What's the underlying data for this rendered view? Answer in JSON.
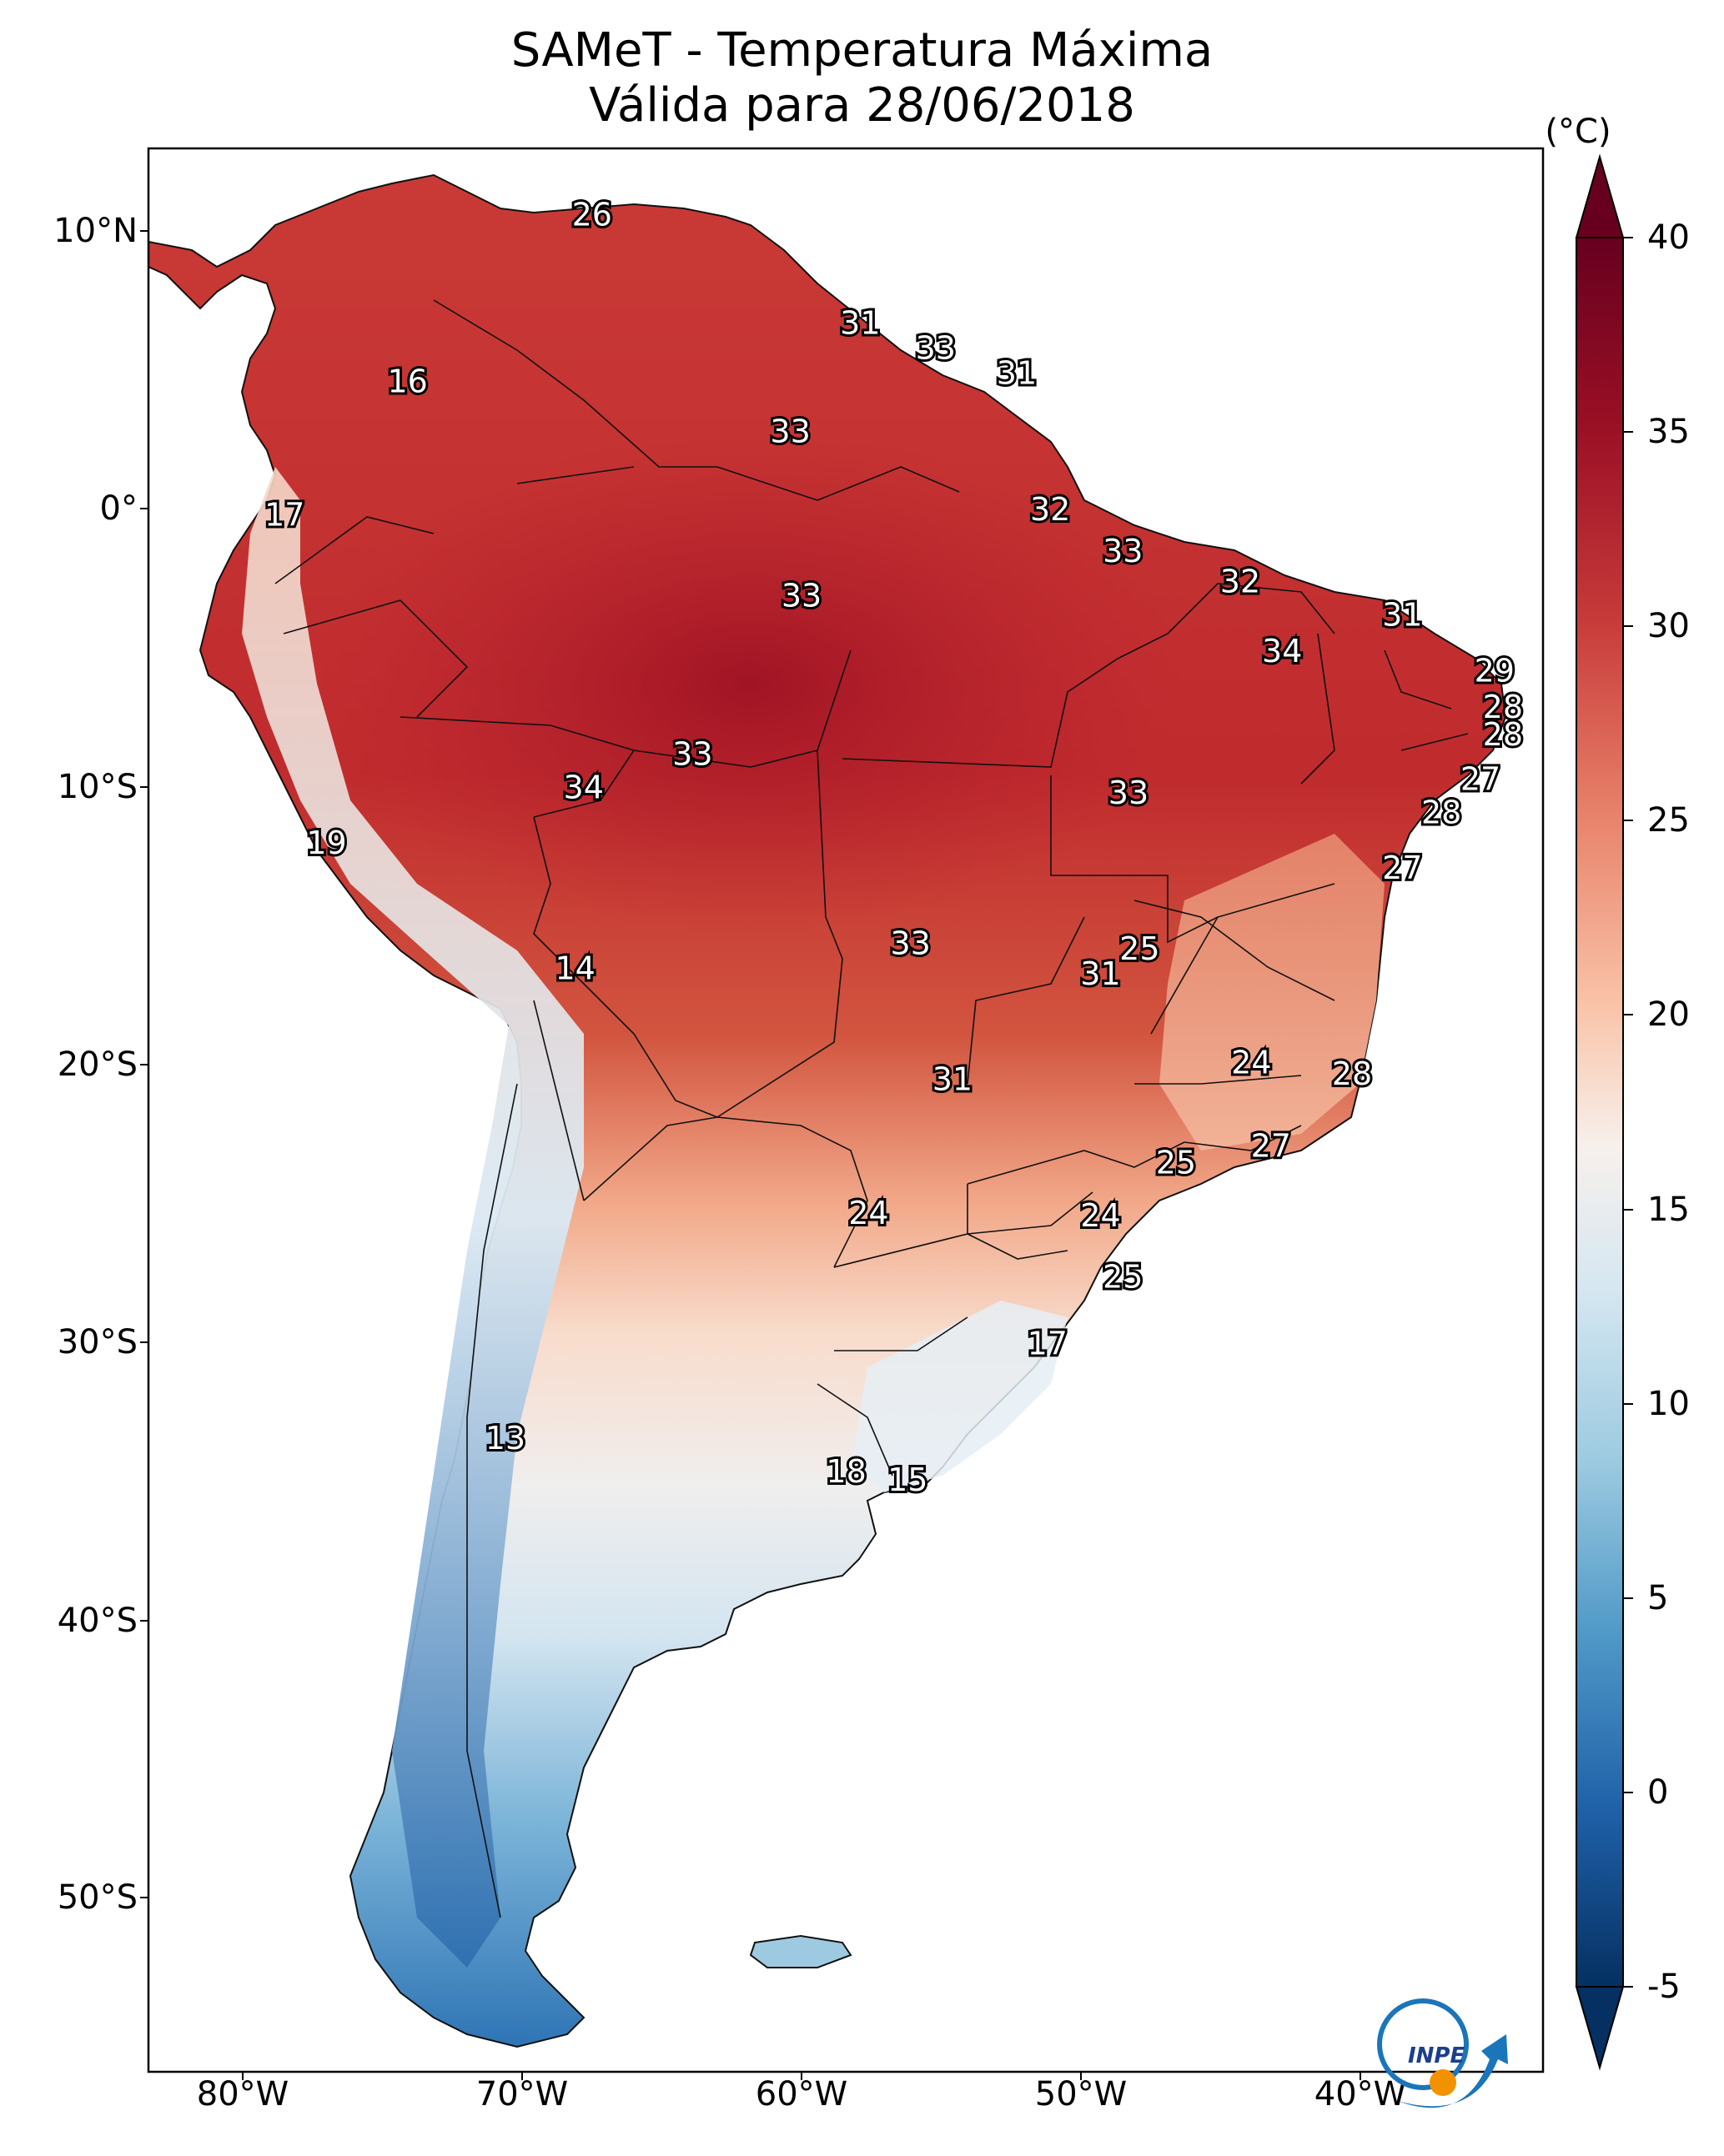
{
  "title": "SAMeT - Temperatura Máxima",
  "subtitle": "Válida para 28/06/2018",
  "colorbar": {
    "unit": "(°C)",
    "ticks": [
      "40",
      "35",
      "30",
      "25",
      "20",
      "15",
      "10",
      "5",
      "0",
      "-5"
    ],
    "min": -5,
    "max": 40,
    "colors_high_to_low": [
      "#67001f",
      "#b2182b",
      "#d6604d",
      "#f4a582",
      "#fddbc7",
      "#f7f7f7",
      "#d1e5f0",
      "#92c5de",
      "#4393c3",
      "#2166ac",
      "#053061"
    ]
  },
  "axes": {
    "lat_labels": [
      "10°N",
      "0°",
      "10°S",
      "20°S",
      "30°S",
      "40°S",
      "50°S"
    ],
    "lon_labels": [
      "80°W",
      "70°W",
      "60°W",
      "50°W",
      "40°W"
    ]
  },
  "station_labels": [
    {
      "text": "26",
      "lon": -67.5,
      "lat": 10.6
    },
    {
      "text": "16",
      "lon": -74.1,
      "lat": 4.6
    },
    {
      "text": "31",
      "lon": -57.9,
      "lat": 6.7
    },
    {
      "text": "33",
      "lon": -55.2,
      "lat": 5.8
    },
    {
      "text": "31",
      "lon": -52.3,
      "lat": 4.9
    },
    {
      "text": "33",
      "lon": -60.4,
      "lat": 2.8
    },
    {
      "text": "17",
      "lon": -78.5,
      "lat": -0.2
    },
    {
      "text": "32",
      "lon": -51.1,
      "lat": 0.0
    },
    {
      "text": "33",
      "lon": -48.5,
      "lat": -1.5
    },
    {
      "text": "32",
      "lon": -44.3,
      "lat": -2.6
    },
    {
      "text": "33",
      "lon": -60.0,
      "lat": -3.1
    },
    {
      "text": "31",
      "lon": -38.5,
      "lat": -3.8
    },
    {
      "text": "34",
      "lon": -42.8,
      "lat": -5.1
    },
    {
      "text": "29",
      "lon": -35.2,
      "lat": -5.8
    },
    {
      "text": "28",
      "lon": -34.9,
      "lat": -7.1
    },
    {
      "text": "28",
      "lon": -34.9,
      "lat": -8.1
    },
    {
      "text": "33",
      "lon": -63.9,
      "lat": -8.8
    },
    {
      "text": "27",
      "lon": -35.7,
      "lat": -9.7
    },
    {
      "text": "34",
      "lon": -67.8,
      "lat": -10.0
    },
    {
      "text": "33",
      "lon": -48.3,
      "lat": -10.2
    },
    {
      "text": "28",
      "lon": -37.1,
      "lat": -10.9
    },
    {
      "text": "19",
      "lon": -77.0,
      "lat": -12.0
    },
    {
      "text": "27",
      "lon": -38.5,
      "lat": -12.9
    },
    {
      "text": "33",
      "lon": -56.1,
      "lat": -15.6
    },
    {
      "text": "25",
      "lon": -47.9,
      "lat": -15.8
    },
    {
      "text": "14",
      "lon": -68.1,
      "lat": -16.5
    },
    {
      "text": "31",
      "lon": -49.3,
      "lat": -16.7
    },
    {
      "text": "24",
      "lon": -43.9,
      "lat": -19.9
    },
    {
      "text": "31",
      "lon": -54.6,
      "lat": -20.5
    },
    {
      "text": "28",
      "lon": -40.3,
      "lat": -20.3
    },
    {
      "text": "27",
      "lon": -43.2,
      "lat": -22.9
    },
    {
      "text": "25",
      "lon": -46.6,
      "lat": -23.5
    },
    {
      "text": "24",
      "lon": -57.6,
      "lat": -25.3
    },
    {
      "text": "24",
      "lon": -49.3,
      "lat": -25.4
    },
    {
      "text": "25",
      "lon": -48.5,
      "lat": -27.6
    },
    {
      "text": "17",
      "lon": -51.2,
      "lat": -30.0
    },
    {
      "text": "13",
      "lon": -70.6,
      "lat": -33.4
    },
    {
      "text": "18",
      "lon": -58.4,
      "lat": -34.6
    },
    {
      "text": "15",
      "lon": -56.2,
      "lat": -34.9
    }
  ],
  "logo": {
    "text": "INPE"
  }
}
